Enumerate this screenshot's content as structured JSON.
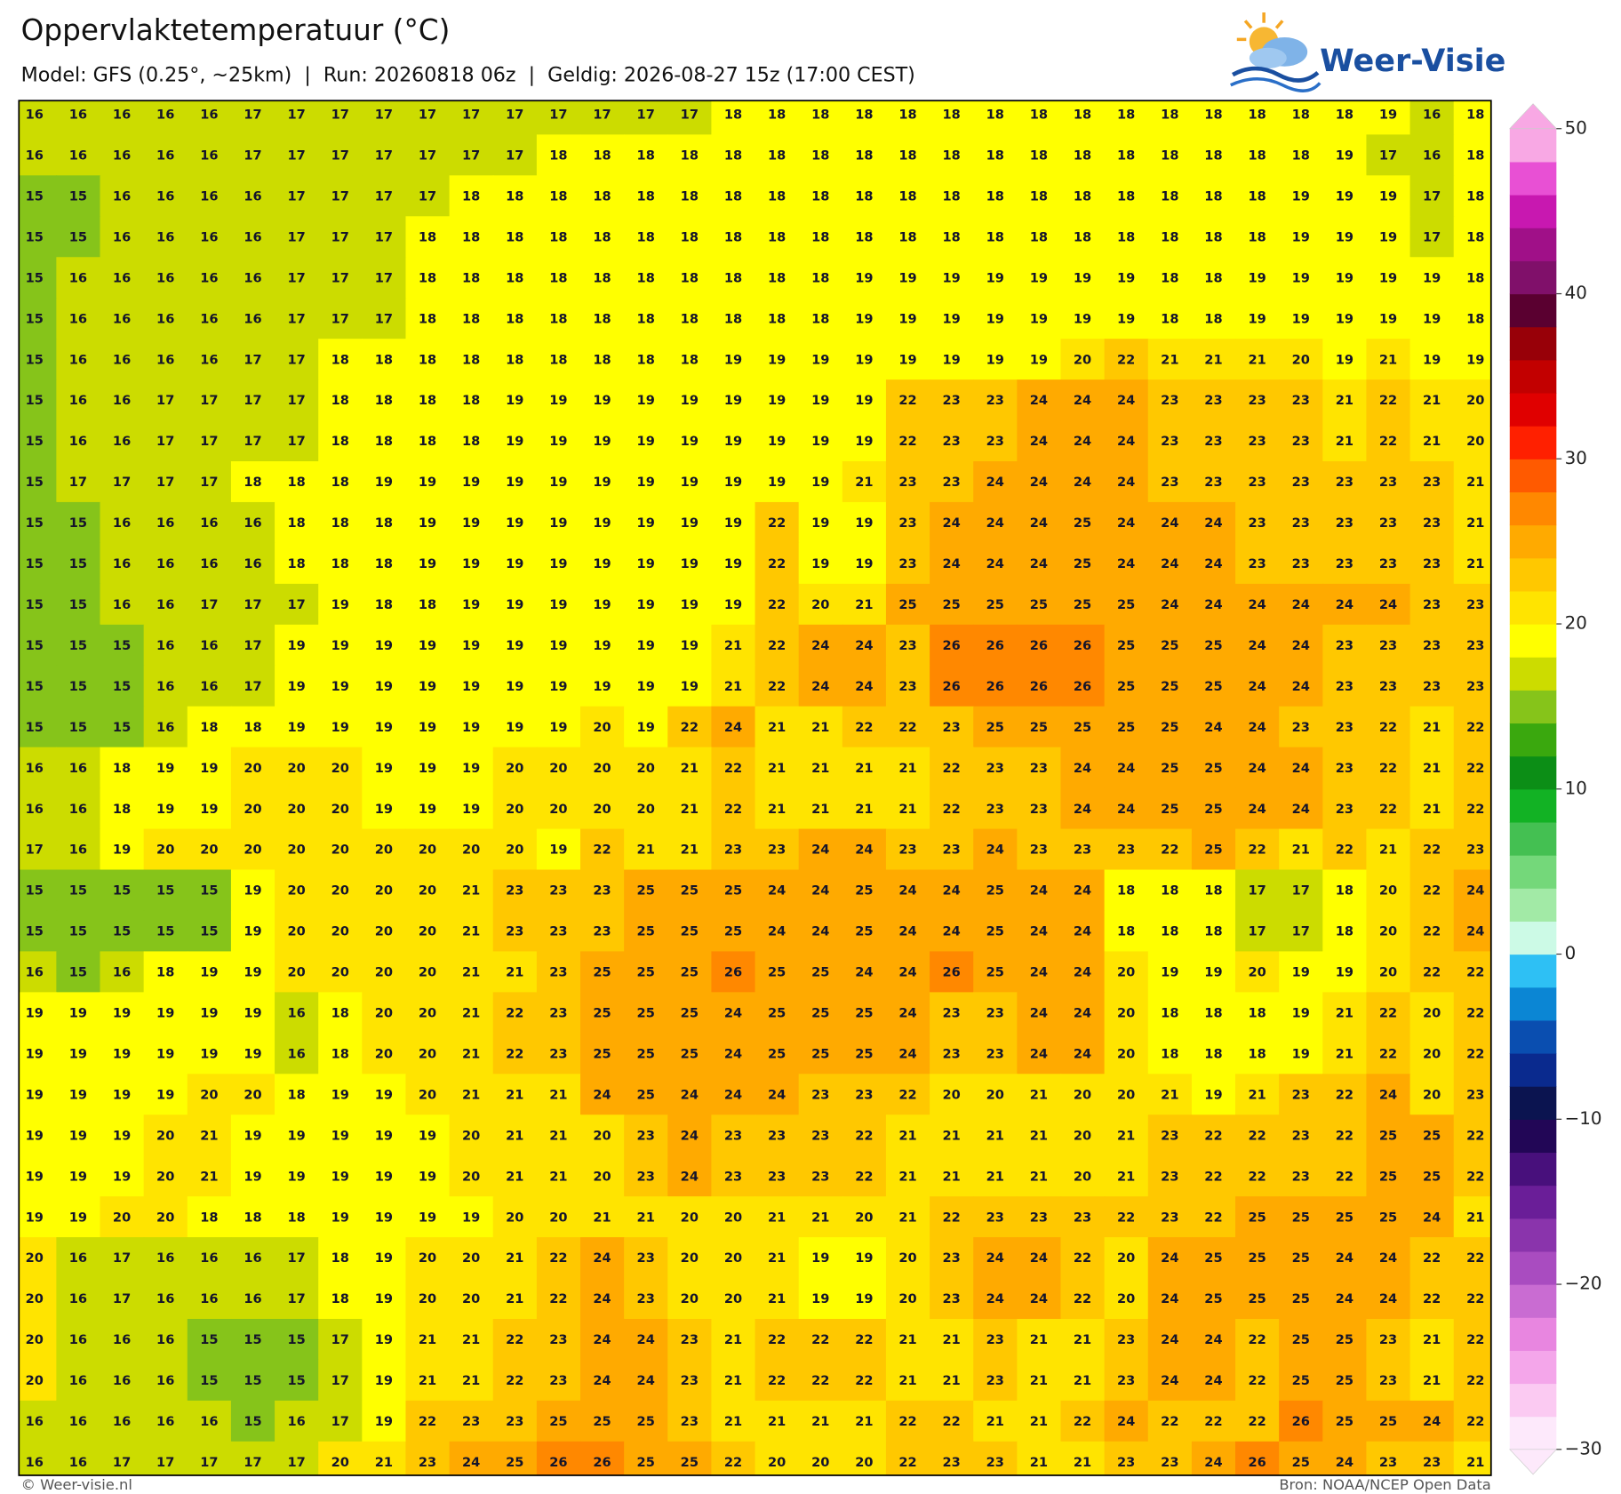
{
  "chart_data": {
    "type": "heatmap",
    "title": "Oppervlaktetemperatuur (°C)",
    "subtitle": "Model: GFS (0.25°, ~25km)  |  Run: 20260818 06z  |  Geldig: 2026-08-27 15z (17:00 CEST)",
    "values": [
      [
        16,
        16,
        16,
        16,
        16,
        17,
        17,
        17,
        17,
        17,
        17,
        17,
        17,
        17,
        17,
        17,
        18,
        18,
        18,
        18,
        18,
        18,
        18,
        18,
        18,
        18,
        18,
        18,
        18,
        18,
        18,
        19,
        16,
        18
      ],
      [
        16,
        16,
        16,
        16,
        16,
        17,
        17,
        17,
        17,
        17,
        17,
        17,
        18,
        18,
        18,
        18,
        18,
        18,
        18,
        18,
        18,
        18,
        18,
        18,
        18,
        18,
        18,
        18,
        18,
        18,
        19,
        17,
        16,
        18
      ],
      [
        15,
        15,
        16,
        16,
        16,
        16,
        17,
        17,
        17,
        17,
        18,
        18,
        18,
        18,
        18,
        18,
        18,
        18,
        18,
        18,
        18,
        18,
        18,
        18,
        18,
        18,
        18,
        18,
        18,
        19,
        19,
        19,
        17,
        18
      ],
      [
        15,
        15,
        16,
        16,
        16,
        16,
        17,
        17,
        17,
        18,
        18,
        18,
        18,
        18,
        18,
        18,
        18,
        18,
        18,
        18,
        18,
        18,
        18,
        18,
        18,
        18,
        18,
        18,
        18,
        19,
        19,
        19,
        17,
        18
      ],
      [
        15,
        16,
        16,
        16,
        16,
        16,
        17,
        17,
        17,
        18,
        18,
        18,
        18,
        18,
        18,
        18,
        18,
        18,
        18,
        19,
        19,
        19,
        19,
        19,
        19,
        19,
        18,
        18,
        19,
        19,
        19,
        19,
        19,
        18
      ],
      [
        15,
        16,
        16,
        16,
        16,
        16,
        17,
        17,
        17,
        18,
        18,
        18,
        18,
        18,
        18,
        18,
        18,
        18,
        18,
        19,
        19,
        19,
        19,
        19,
        19,
        19,
        18,
        18,
        19,
        19,
        19,
        19,
        19,
        18
      ],
      [
        15,
        16,
        16,
        16,
        16,
        17,
        17,
        18,
        18,
        18,
        18,
        18,
        18,
        18,
        18,
        18,
        19,
        19,
        19,
        19,
        19,
        19,
        19,
        19,
        20,
        22,
        21,
        21,
        21,
        20,
        19,
        21,
        19,
        19
      ],
      [
        15,
        16,
        16,
        17,
        17,
        17,
        17,
        18,
        18,
        18,
        18,
        19,
        19,
        19,
        19,
        19,
        19,
        19,
        19,
        19,
        22,
        23,
        23,
        24,
        24,
        24,
        23,
        23,
        23,
        23,
        21,
        22,
        21,
        20
      ],
      [
        15,
        16,
        16,
        17,
        17,
        17,
        17,
        18,
        18,
        18,
        18,
        19,
        19,
        19,
        19,
        19,
        19,
        19,
        19,
        19,
        22,
        23,
        23,
        24,
        24,
        24,
        23,
        23,
        23,
        23,
        21,
        22,
        21,
        20
      ],
      [
        15,
        17,
        17,
        17,
        17,
        18,
        18,
        18,
        19,
        19,
        19,
        19,
        19,
        19,
        19,
        19,
        19,
        19,
        19,
        21,
        23,
        23,
        24,
        24,
        24,
        24,
        23,
        23,
        23,
        23,
        23,
        23,
        23,
        21
      ],
      [
        15,
        15,
        16,
        16,
        16,
        16,
        18,
        18,
        18,
        19,
        19,
        19,
        19,
        19,
        19,
        19,
        19,
        22,
        19,
        19,
        23,
        24,
        24,
        24,
        25,
        24,
        24,
        24,
        23,
        23,
        23,
        23,
        23,
        21
      ],
      [
        15,
        15,
        16,
        16,
        16,
        16,
        18,
        18,
        18,
        19,
        19,
        19,
        19,
        19,
        19,
        19,
        19,
        22,
        19,
        19,
        23,
        24,
        24,
        24,
        25,
        24,
        24,
        24,
        23,
        23,
        23,
        23,
        23,
        21
      ],
      [
        15,
        15,
        16,
        16,
        17,
        17,
        17,
        19,
        18,
        18,
        19,
        19,
        19,
        19,
        19,
        19,
        19,
        22,
        20,
        21,
        25,
        25,
        25,
        25,
        25,
        25,
        24,
        24,
        24,
        24,
        24,
        24,
        23,
        23
      ],
      [
        15,
        15,
        15,
        16,
        16,
        17,
        19,
        19,
        19,
        19,
        19,
        19,
        19,
        19,
        19,
        19,
        21,
        22,
        24,
        24,
        23,
        26,
        26,
        26,
        26,
        25,
        25,
        25,
        24,
        24,
        23,
        23,
        23,
        23
      ],
      [
        15,
        15,
        15,
        16,
        16,
        17,
        19,
        19,
        19,
        19,
        19,
        19,
        19,
        19,
        19,
        19,
        21,
        22,
        24,
        24,
        23,
        26,
        26,
        26,
        26,
        25,
        25,
        25,
        24,
        24,
        23,
        23,
        23,
        23
      ],
      [
        15,
        15,
        15,
        16,
        18,
        18,
        19,
        19,
        19,
        19,
        19,
        19,
        19,
        20,
        19,
        22,
        24,
        21,
        21,
        22,
        22,
        23,
        25,
        25,
        25,
        25,
        25,
        24,
        24,
        23,
        23,
        22,
        21,
        22
      ],
      [
        16,
        16,
        18,
        19,
        19,
        20,
        20,
        20,
        19,
        19,
        19,
        20,
        20,
        20,
        20,
        21,
        22,
        21,
        21,
        21,
        21,
        22,
        23,
        23,
        24,
        24,
        25,
        25,
        24,
        24,
        23,
        22,
        21,
        22
      ],
      [
        16,
        16,
        18,
        19,
        19,
        20,
        20,
        20,
        19,
        19,
        19,
        20,
        20,
        20,
        20,
        21,
        22,
        21,
        21,
        21,
        21,
        22,
        23,
        23,
        24,
        24,
        25,
        25,
        24,
        24,
        23,
        22,
        21,
        22
      ],
      [
        17,
        16,
        19,
        20,
        20,
        20,
        20,
        20,
        20,
        20,
        20,
        20,
        19,
        22,
        21,
        21,
        23,
        23,
        24,
        24,
        23,
        23,
        24,
        23,
        23,
        23,
        22,
        25,
        22,
        21,
        22,
        21,
        22,
        23
      ],
      [
        15,
        15,
        15,
        15,
        15,
        19,
        20,
        20,
        20,
        20,
        21,
        23,
        23,
        23,
        25,
        25,
        25,
        24,
        24,
        25,
        24,
        24,
        25,
        24,
        24,
        18,
        18,
        18,
        17,
        17,
        18,
        20,
        22,
        24
      ],
      [
        15,
        15,
        15,
        15,
        15,
        19,
        20,
        20,
        20,
        20,
        21,
        23,
        23,
        23,
        25,
        25,
        25,
        24,
        24,
        25,
        24,
        24,
        25,
        24,
        24,
        18,
        18,
        18,
        17,
        17,
        18,
        20,
        22,
        24
      ],
      [
        16,
        15,
        16,
        18,
        19,
        19,
        20,
        20,
        20,
        20,
        21,
        21,
        23,
        25,
        25,
        25,
        26,
        25,
        25,
        24,
        24,
        26,
        25,
        24,
        24,
        20,
        19,
        19,
        20,
        19,
        19,
        20,
        22,
        22
      ],
      [
        19,
        19,
        19,
        19,
        19,
        19,
        16,
        18,
        20,
        20,
        21,
        22,
        23,
        25,
        25,
        25,
        24,
        25,
        25,
        25,
        24,
        23,
        23,
        24,
        24,
        20,
        18,
        18,
        18,
        19,
        21,
        22,
        20,
        22
      ],
      [
        19,
        19,
        19,
        19,
        19,
        19,
        16,
        18,
        20,
        20,
        21,
        22,
        23,
        25,
        25,
        25,
        24,
        25,
        25,
        25,
        24,
        23,
        23,
        24,
        24,
        20,
        18,
        18,
        18,
        19,
        21,
        22,
        20,
        22
      ],
      [
        19,
        19,
        19,
        19,
        20,
        20,
        18,
        19,
        19,
        20,
        21,
        21,
        21,
        24,
        25,
        24,
        24,
        24,
        23,
        23,
        22,
        20,
        20,
        21,
        20,
        20,
        21,
        19,
        21,
        23,
        22,
        24,
        20,
        23
      ],
      [
        19,
        19,
        19,
        20,
        21,
        19,
        19,
        19,
        19,
        19,
        20,
        21,
        21,
        20,
        23,
        24,
        23,
        23,
        23,
        22,
        21,
        21,
        21,
        21,
        20,
        21,
        23,
        22,
        22,
        23,
        22,
        25,
        25,
        22
      ],
      [
        19,
        19,
        19,
        20,
        21,
        19,
        19,
        19,
        19,
        19,
        20,
        21,
        21,
        20,
        23,
        24,
        23,
        23,
        23,
        22,
        21,
        21,
        21,
        21,
        20,
        21,
        23,
        22,
        22,
        23,
        22,
        25,
        25,
        22
      ],
      [
        19,
        19,
        20,
        20,
        18,
        18,
        18,
        19,
        19,
        19,
        19,
        20,
        20,
        21,
        21,
        20,
        20,
        21,
        21,
        20,
        21,
        22,
        23,
        23,
        23,
        22,
        23,
        22,
        25,
        25,
        25,
        25,
        24,
        21
      ],
      [
        20,
        16,
        17,
        16,
        16,
        16,
        17,
        18,
        19,
        20,
        20,
        21,
        22,
        24,
        23,
        20,
        20,
        21,
        19,
        19,
        20,
        23,
        24,
        24,
        22,
        20,
        24,
        25,
        25,
        25,
        24,
        24,
        22,
        22
      ],
      [
        20,
        16,
        17,
        16,
        16,
        16,
        17,
        18,
        19,
        20,
        20,
        21,
        22,
        24,
        23,
        20,
        20,
        21,
        19,
        19,
        20,
        23,
        24,
        24,
        22,
        20,
        24,
        25,
        25,
        25,
        24,
        24,
        22,
        22
      ],
      [
        20,
        16,
        16,
        16,
        15,
        15,
        15,
        17,
        19,
        21,
        21,
        22,
        23,
        24,
        24,
        23,
        21,
        22,
        22,
        22,
        21,
        21,
        23,
        21,
        21,
        23,
        24,
        24,
        22,
        25,
        25,
        23,
        21,
        22
      ],
      [
        20,
        16,
        16,
        16,
        15,
        15,
        15,
        17,
        19,
        21,
        21,
        22,
        23,
        24,
        24,
        23,
        21,
        22,
        22,
        22,
        21,
        21,
        23,
        21,
        21,
        23,
        24,
        24,
        22,
        25,
        25,
        23,
        21,
        22
      ],
      [
        16,
        16,
        16,
        16,
        16,
        15,
        16,
        17,
        19,
        22,
        23,
        23,
        25,
        25,
        25,
        23,
        21,
        21,
        21,
        21,
        22,
        22,
        21,
        21,
        22,
        24,
        22,
        22,
        22,
        26,
        25,
        25,
        24,
        22
      ],
      [
        16,
        16,
        17,
        17,
        17,
        17,
        17,
        20,
        21,
        23,
        24,
        25,
        26,
        26,
        25,
        25,
        22,
        20,
        20,
        20,
        22,
        23,
        23,
        21,
        21,
        23,
        23,
        24,
        26,
        25,
        24,
        23,
        23,
        21
      ]
    ],
    "colorbar": {
      "ylim": [
        -30,
        50
      ],
      "yticks": [
        50,
        40,
        30,
        20,
        10,
        0,
        {
          "value": -10,
          "label": "−10"
        },
        {
          "value": -20,
          "label": "−20"
        },
        {
          "value": -30,
          "label": "−30"
        }
      ],
      "colors": [
        "#fde9fb",
        "#fbcaf2",
        "#f4a6ea",
        "#e886e0",
        "#c96cd2",
        "#a94cc0",
        "#8a34ac",
        "#6a1e98",
        "#48107c",
        "#220656",
        "#0b1450",
        "#0a2a8e",
        "#0a4eb0",
        "#0b86d4",
        "#2ec0f4",
        "#ccfae6",
        "#a2eaa6",
        "#74d87a",
        "#44c052",
        "#12b224",
        "#0c8e16",
        "#3aa80e",
        "#86c41a",
        "#ccdc00",
        "#ffff00",
        "#ffe400",
        "#ffc800",
        "#ffaa00",
        "#ff8800",
        "#ff5a00",
        "#ff2000",
        "#e00000",
        "#c20000",
        "#980008",
        "#5a0030",
        "#80106a",
        "#a01088",
        "#c818b0",
        "#e850d4",
        "#f8a8e4"
      ]
    }
  },
  "logo": "Weer-Visie",
  "credit": "© Weer-visie.nl",
  "source": "Bron: NOAA/NCEP Open Data"
}
